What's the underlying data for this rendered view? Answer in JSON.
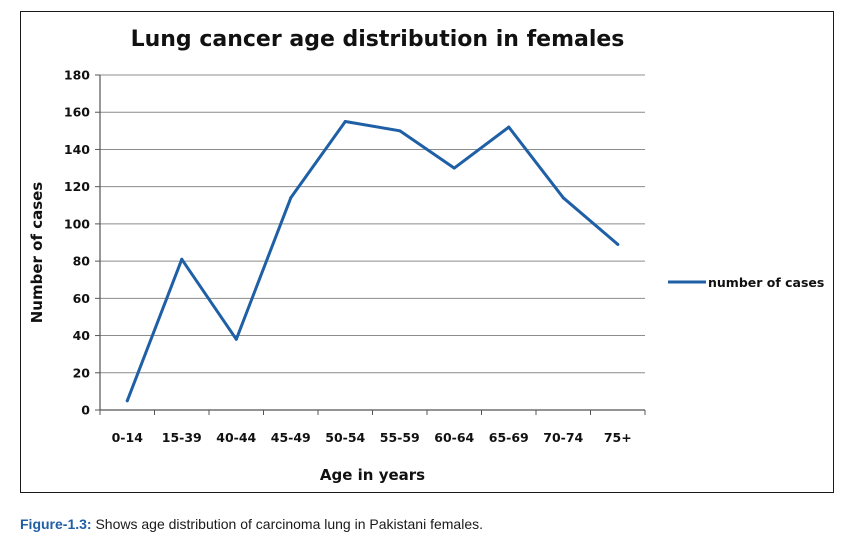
{
  "chart_data": {
    "type": "line",
    "title": "Lung cancer age distribution in females",
    "xlabel": "Age in years",
    "ylabel": "Number of cases",
    "categories": [
      "0-14",
      "15-39",
      "40-44",
      "45-49",
      "50-54",
      "55-59",
      "60-64",
      "65-69",
      "70-74",
      "75+"
    ],
    "series": [
      {
        "name": "number of cases",
        "values": [
          5,
          81,
          38,
          114,
          155,
          150,
          130,
          152,
          114,
          89
        ]
      }
    ],
    "ylim": [
      0,
      180
    ],
    "yticks": [
      0,
      20,
      40,
      60,
      80,
      100,
      120,
      140,
      160,
      180
    ],
    "grid": "horizontal",
    "legend": "right",
    "line_color": "#1f5fa6"
  },
  "caption": {
    "label": "Figure-1.3:",
    "text": " Shows age distribution of carcinoma lung in Pakistani females."
  }
}
